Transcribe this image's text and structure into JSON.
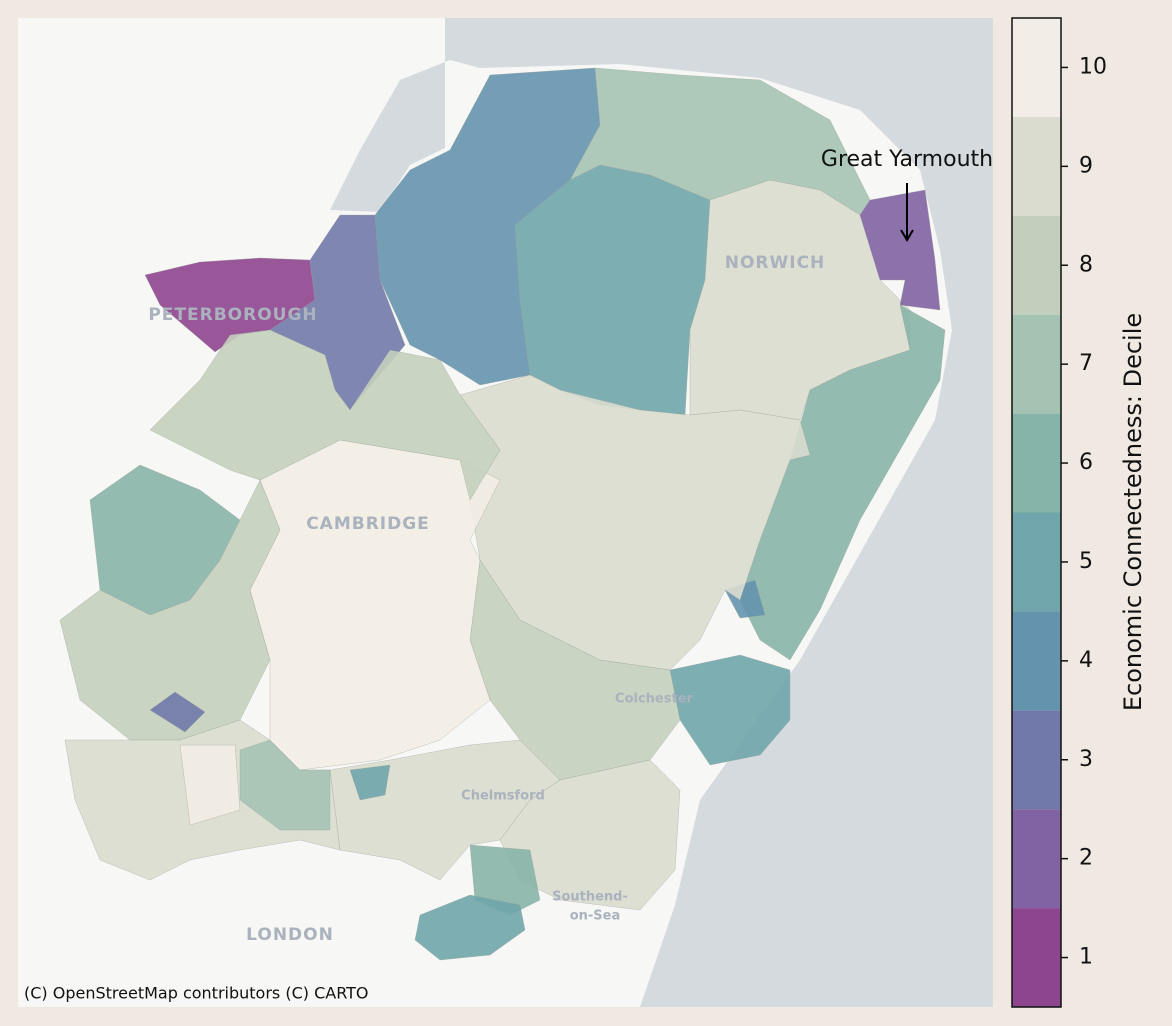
{
  "map": {
    "attribution": "(C) OpenStreetMap contributors (C) CARTO",
    "annotation": "Great Yarmouth",
    "basemap_labels": [
      "PETERBOROUGH",
      "NORWICH",
      "CAMBRIDGE",
      "Colchester",
      "Chelmsford",
      "Southend-",
      "on-Sea",
      "LONDON"
    ],
    "deciles": [
      4,
      1,
      3,
      5,
      7,
      9,
      2,
      6,
      4,
      5,
      9,
      8,
      9,
      6,
      5,
      9,
      10,
      8,
      6,
      8,
      3,
      9,
      10,
      5,
      7
    ]
  },
  "colorbar": {
    "label": "Economic Connectedness: Decile",
    "lim": [
      0.5,
      10.5
    ],
    "ticks": [
      1,
      2,
      3,
      4,
      5,
      6,
      7,
      8,
      9,
      10
    ],
    "colors": [
      "#8e4590",
      "#8162a3",
      "#7079aa",
      "#6493ae",
      "#6fa5ab",
      "#87b4a9",
      "#a5c3b3",
      "#c3cfbd",
      "#d9dccf",
      "#f2ede6"
    ]
  }
}
